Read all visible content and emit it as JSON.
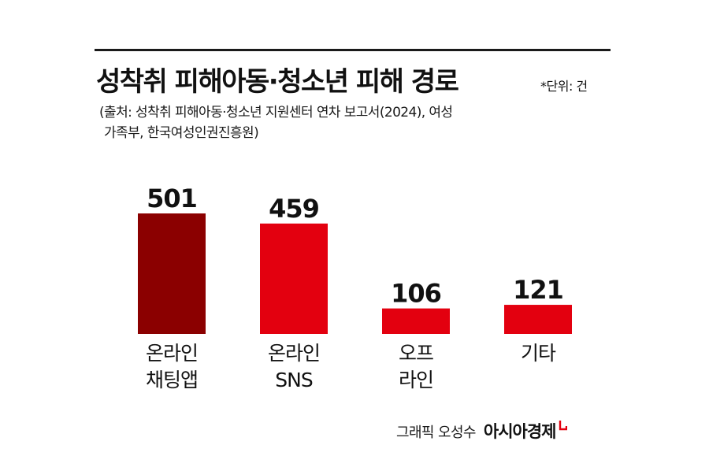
{
  "header": {
    "title": "성착취 피해아동·청소년 피해 경로",
    "unit": "*단위: 건",
    "source_line1": "(출처: 성착취 피해아동·청소년 지원센터 연차 보고서(2024), 여성",
    "source_line2": "가족부, 한국여성인권진흥원)"
  },
  "chart_data": {
    "type": "bar",
    "categories": [
      [
        "온라인",
        "채팅앱"
      ],
      [
        "온라인",
        "SNS"
      ],
      [
        "오프",
        "라인"
      ],
      [
        "기타"
      ]
    ],
    "values": [
      501,
      459,
      106,
      121
    ],
    "value_labels": [
      "501",
      "459",
      "106",
      "121"
    ],
    "colors": [
      "#8b0000",
      "#e3000f",
      "#e3000f",
      "#e3000f"
    ],
    "ylim": [
      0,
      501
    ],
    "grid": false,
    "legend": "none"
  },
  "footer": {
    "credit": "그래픽 오성수",
    "brand": "아시아경제",
    "brand_color": "#e3000f"
  }
}
